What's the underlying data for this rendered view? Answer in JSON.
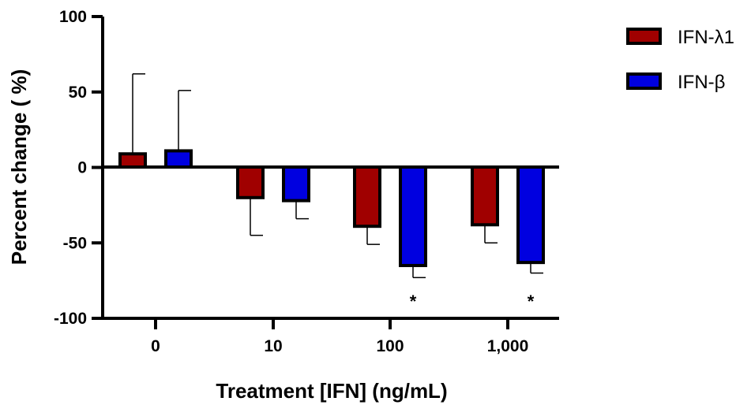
{
  "chart_data": {
    "type": "bar",
    "xlabel": "Treatment  [IFN] (ng/mL)",
    "ylabel": "Percent change ( %)",
    "categories": [
      "0",
      "10",
      "100",
      "1,000"
    ],
    "ylim": [
      -100,
      100
    ],
    "yticks": [
      100,
      50,
      0,
      -50,
      -100
    ],
    "ytick_labels": [
      "100",
      "50",
      "0",
      "-50",
      "-100"
    ],
    "grid": false,
    "legend_position": "top-right",
    "series": [
      {
        "name": "IFN-λ1",
        "color": "#a00000",
        "values": [
          9,
          -20,
          -39,
          -38
        ],
        "errors": [
          53,
          25,
          12,
          12
        ],
        "annotations": [
          "",
          "",
          "",
          ""
        ]
      },
      {
        "name": "IFN-β",
        "color": "#0000e0",
        "values": [
          11,
          -22,
          -65,
          -63
        ],
        "errors": [
          40,
          12,
          8,
          7
        ],
        "annotations": [
          "",
          "",
          "*",
          "*"
        ]
      }
    ]
  }
}
